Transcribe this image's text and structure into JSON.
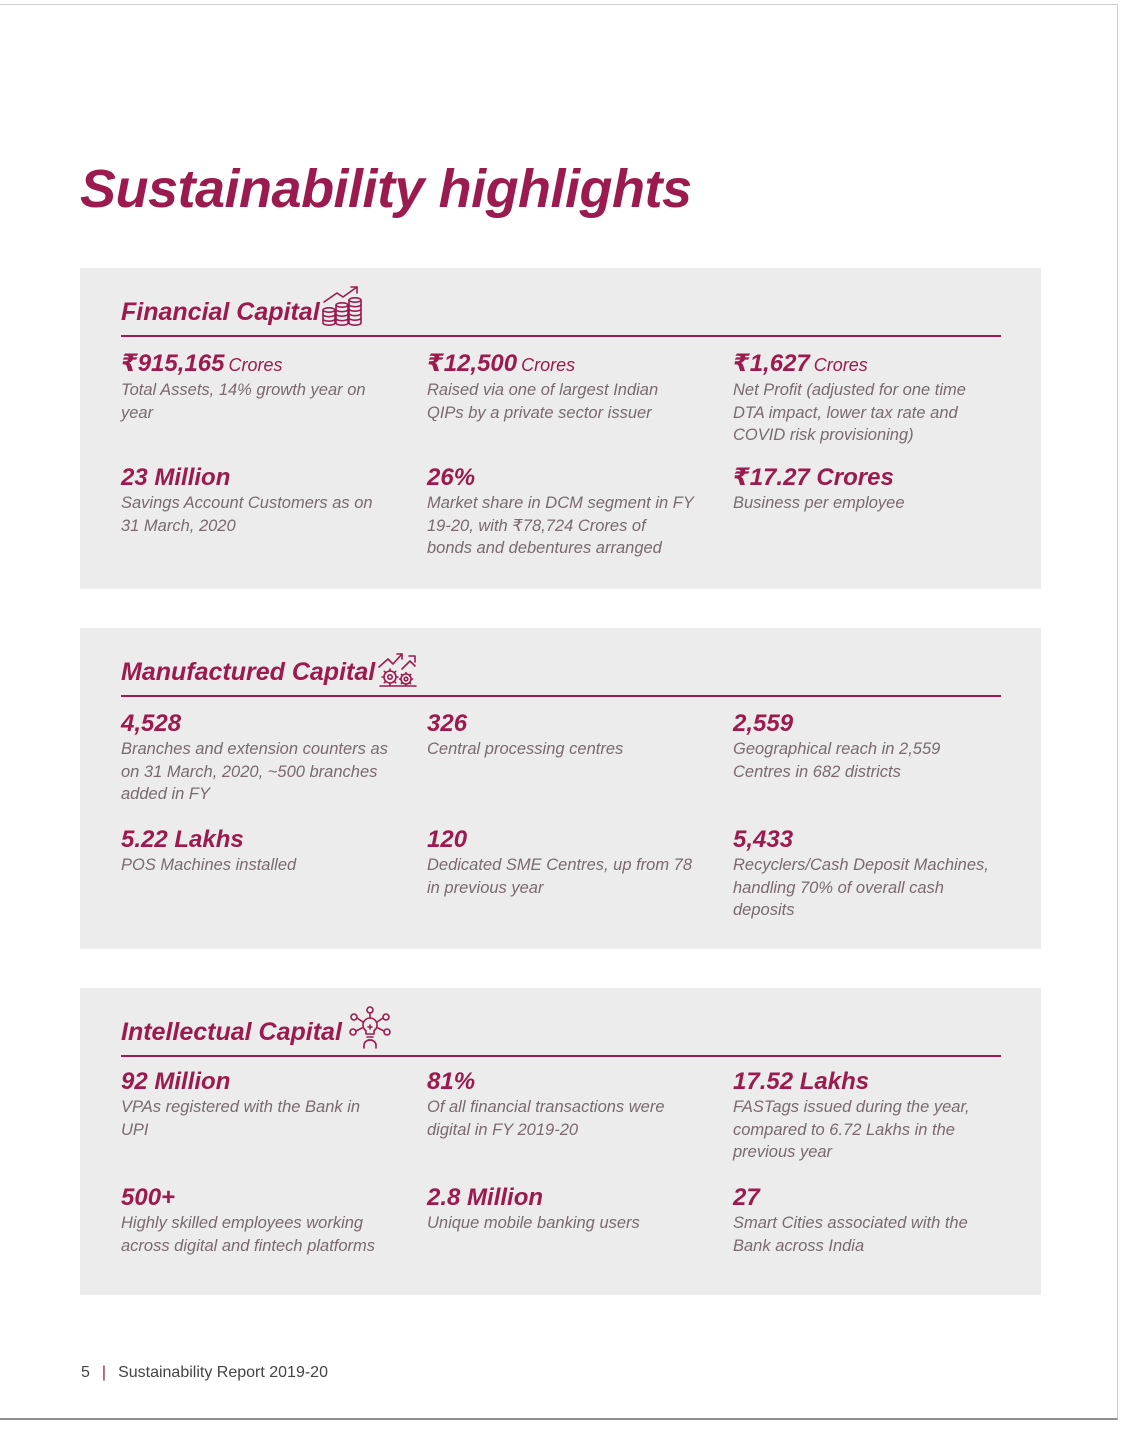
{
  "page_title": "Sustainability highlights",
  "colors": {
    "accent": "#9b1b4e",
    "panel_bg": "#ececec",
    "body_text": "#7a6a70"
  },
  "sections": [
    {
      "title": "Financial Capital",
      "icon": "coins-growth-icon",
      "metrics": [
        {
          "value": "₹915,165",
          "unit": "Crores",
          "desc": "Total Assets, 14% growth year on year"
        },
        {
          "value": "₹12,500",
          "unit": "Crores",
          "desc": "Raised via one of largest Indian QIPs by a private sector issuer"
        },
        {
          "value": "₹1,627",
          "unit": "Crores",
          "desc": "Net Profit (adjusted for one time DTA impact, lower tax rate and COVID risk provisioning)"
        },
        {
          "value": "23 Million",
          "unit": "",
          "desc": "Savings Account Customers as on 31 March, 2020"
        },
        {
          "value": "26%",
          "unit": "",
          "desc": "Market share in DCM segment in FY 19-20, with ₹78,724 Crores of bonds and debentures arranged"
        },
        {
          "value": "₹17.27 Crores",
          "unit": "",
          "desc": "Business per employee"
        }
      ]
    },
    {
      "title": "Manufactured Capital",
      "icon": "gears-growth-icon",
      "metrics": [
        {
          "value": "4,528",
          "unit": "",
          "desc": "Branches and extension counters as on 31 March, 2020, ~500 branches added in FY"
        },
        {
          "value": "326",
          "unit": "",
          "desc": "Central processing centres"
        },
        {
          "value": "2,559",
          "unit": "",
          "desc": "Geographical reach in 2,559 Centres in 682 districts"
        },
        {
          "value": "5.22 Lakhs",
          "unit": "",
          "desc": "POS Machines installed"
        },
        {
          "value": "120",
          "unit": "",
          "desc": "Dedicated SME Centres, up from 78 in previous year"
        },
        {
          "value": "5,433",
          "unit": "",
          "desc": "Recyclers/Cash Deposit Machines, handling 70% of overall cash deposits"
        }
      ]
    },
    {
      "title": "Intellectual Capital",
      "icon": "idea-network-icon",
      "metrics": [
        {
          "value": "92 Million",
          "unit": "",
          "desc": "VPAs registered with the Bank in UPI"
        },
        {
          "value": "81%",
          "unit": "",
          "desc": "Of all financial transactions were digital in FY 2019-20"
        },
        {
          "value": "17.52 Lakhs",
          "unit": "",
          "desc": "FASTags issued during the year, compared to 6.72 Lakhs in the previous year"
        },
        {
          "value": "500+",
          "unit": "",
          "desc": "Highly skilled employees working across digital and fintech platforms"
        },
        {
          "value": "2.8 Million",
          "unit": "",
          "desc": "Unique mobile banking users"
        },
        {
          "value": "27",
          "unit": "",
          "desc": "Smart Cities associated with the Bank across India"
        }
      ]
    }
  ],
  "footer": {
    "page_number": "5",
    "separator": "|",
    "report_name": "Sustainability Report 2019-20"
  }
}
